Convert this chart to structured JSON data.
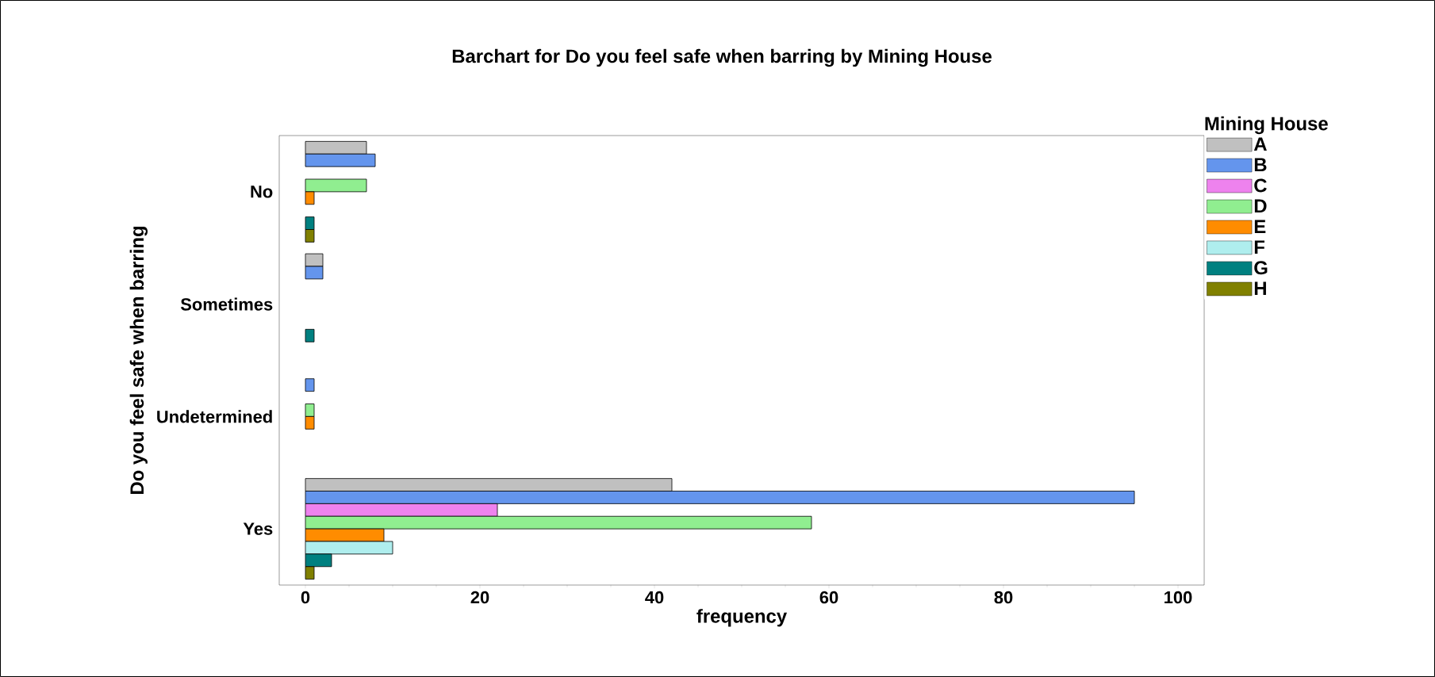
{
  "chart_data": {
    "type": "bar",
    "orientation": "horizontal",
    "title": "Barchart for Do you feel safe when barring by Mining House",
    "xlabel": "frequency",
    "ylabel": "Do you feel safe when barring",
    "legend_title": "Mining House",
    "legend": "top right",
    "categories": [
      "No",
      "Sometimes",
      "Undetermined",
      "Yes"
    ],
    "xlim": [
      -3,
      103
    ],
    "xticks": [
      0,
      20,
      40,
      60,
      80,
      100
    ],
    "series": [
      {
        "name": "A",
        "color": "#c0c0c0",
        "values": [
          7,
          2,
          0,
          42
        ]
      },
      {
        "name": "B",
        "color": "#6495ed",
        "values": [
          8,
          2,
          1,
          95
        ]
      },
      {
        "name": "C",
        "color": "#ee82ee",
        "values": [
          0,
          0,
          0,
          22
        ]
      },
      {
        "name": "D",
        "color": "#90ee90",
        "values": [
          7,
          0,
          1,
          58
        ]
      },
      {
        "name": "E",
        "color": "#ff8c00",
        "values": [
          1,
          0,
          1,
          9
        ]
      },
      {
        "name": "F",
        "color": "#afeeee",
        "values": [
          0,
          0,
          0,
          10
        ]
      },
      {
        "name": "G",
        "color": "#008080",
        "values": [
          1,
          1,
          0,
          3
        ]
      },
      {
        "name": "H",
        "color": "#808000",
        "values": [
          1,
          0,
          0,
          1
        ]
      }
    ]
  }
}
